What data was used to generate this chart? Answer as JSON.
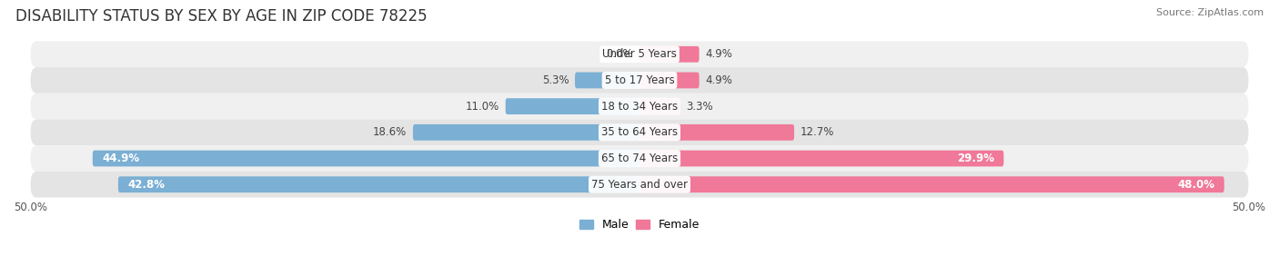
{
  "title": "DISABILITY STATUS BY SEX BY AGE IN ZIP CODE 78225",
  "source": "Source: ZipAtlas.com",
  "categories": [
    "Under 5 Years",
    "5 to 17 Years",
    "18 to 34 Years",
    "35 to 64 Years",
    "65 to 74 Years",
    "75 Years and over"
  ],
  "male_values": [
    0.0,
    5.3,
    11.0,
    18.6,
    44.9,
    42.8
  ],
  "female_values": [
    4.9,
    4.9,
    3.3,
    12.7,
    29.9,
    48.0
  ],
  "male_color": "#7bafd4",
  "female_color": "#f07898",
  "row_bg_light": "#f0f0f0",
  "row_bg_dark": "#e4e4e4",
  "max_val": 50.0,
  "title_fontsize": 12,
  "bar_height": 0.62,
  "label_fontsize": 8.5,
  "category_fontsize": 8.5,
  "source_fontsize": 8.0
}
